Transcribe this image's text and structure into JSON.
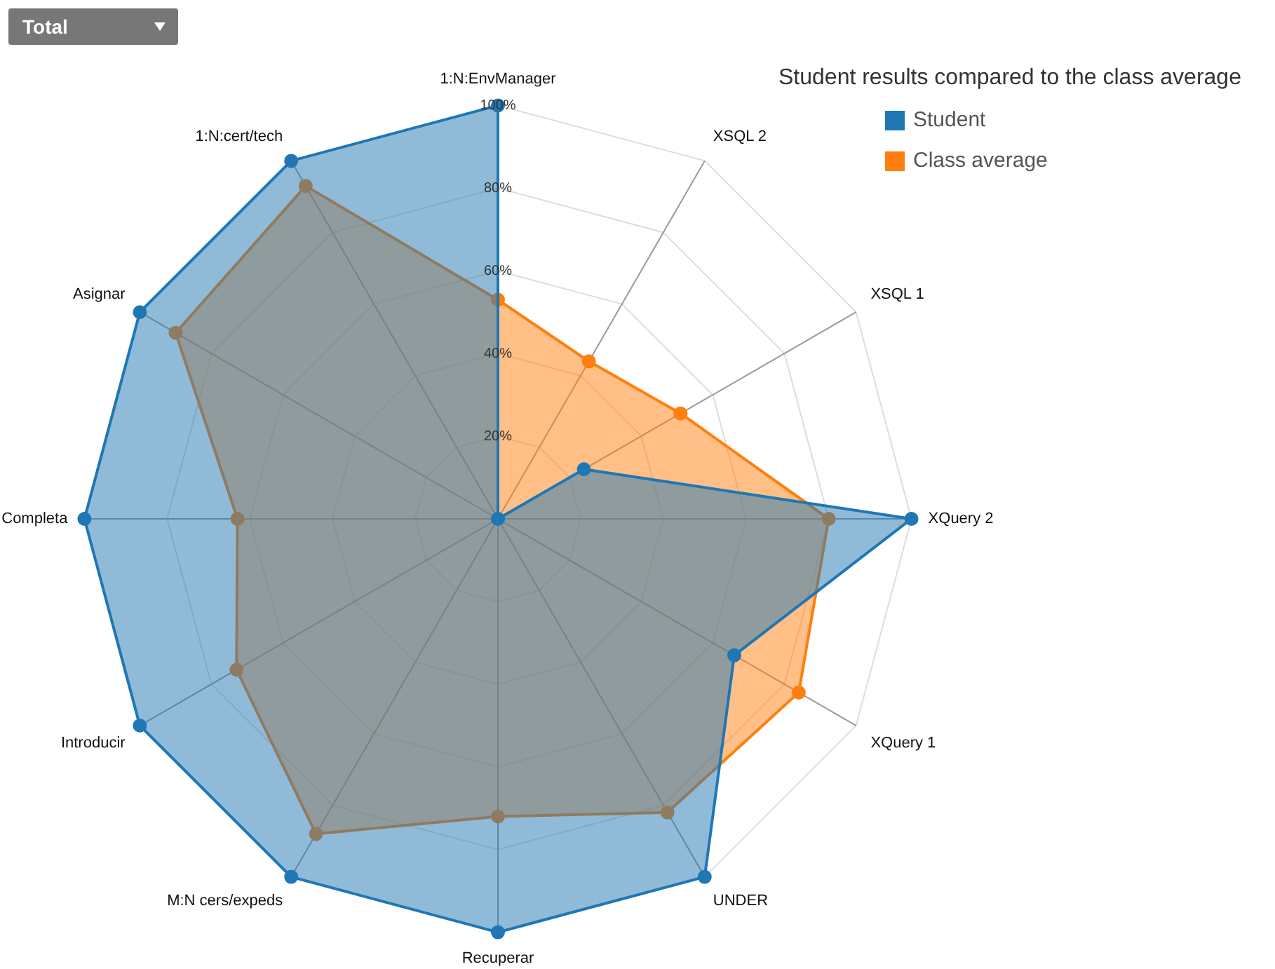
{
  "chart_data": {
    "type": "radar",
    "legend_title": "Student results compared to the class average",
    "annotations": [
      "Total"
    ],
    "categories": [
      "1:N:EnvManager",
      "XSQL 2",
      "XSQL 1",
      "XQuery 2",
      "XQuery 1",
      "UNDER",
      "Recuperar",
      "M:N cers/expeds",
      "Introducir",
      "Completa",
      "Asignar",
      "1:N:cert/tech"
    ],
    "series": [
      {
        "name": "Student",
        "color": "#1f77b4",
        "values": [
          100,
          0,
          24,
          100,
          66,
          100,
          100,
          100,
          100,
          100,
          100,
          100
        ]
      },
      {
        "name": "Class average",
        "color": "#ff7f0e",
        "values": [
          53,
          44,
          51,
          80,
          84,
          82,
          72,
          88,
          73,
          63,
          90,
          93
        ]
      }
    ],
    "ylim": [
      0,
      100
    ],
    "yticks": [
      {
        "value": 20,
        "label": "20%"
      },
      {
        "value": 40,
        "label": "40%"
      },
      {
        "value": 60,
        "label": "60%"
      },
      {
        "value": 80,
        "label": "80%"
      },
      {
        "value": 100,
        "label": "100%"
      }
    ],
    "grid": true,
    "legend": "top right",
    "marker": "circle"
  }
}
